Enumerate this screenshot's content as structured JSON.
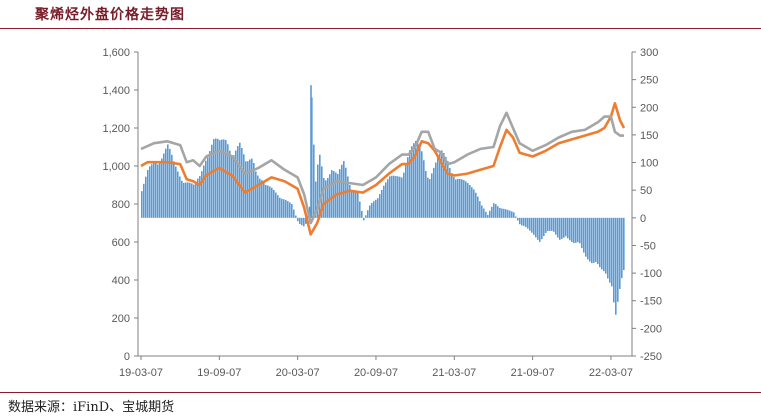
{
  "header": {
    "title": "聚烯烃外盘价格走势图"
  },
  "footer": {
    "source": "数据来源：iFinD、宝城期货"
  },
  "colors": {
    "bars": "#5b9bd5",
    "line_orange": "#ed7d31",
    "line_gray": "#a5a5a5",
    "rule": "#8b1a2b"
  },
  "chart_data": {
    "type": "bar+line",
    "title": "",
    "x_tick_labels": [
      "19-03-07",
      "19-09-07",
      "20-03-07",
      "20-09-07",
      "21-03-07",
      "21-09-07",
      "22-03-07"
    ],
    "left_axis": {
      "ticks": [
        "0",
        "200",
        "400",
        "600",
        "800",
        "1,000",
        "1,200",
        "1,400",
        "1,600"
      ],
      "ylim": [
        0,
        1600
      ]
    },
    "right_axis": {
      "ticks": [
        "-250",
        "-200",
        "-150",
        "-100",
        "-50",
        "0",
        "50",
        "100",
        "150",
        "200",
        "250",
        "300"
      ],
      "ylim": [
        -250,
        300
      ]
    },
    "x_range_months": [
      0,
      37
    ],
    "series": [
      {
        "kind": "bar",
        "axis": "right",
        "x": [
          0,
          0.5,
          1,
          1.5,
          2,
          2.5,
          3,
          3.5,
          4,
          4.5,
          5,
          5.5,
          6,
          6.5,
          7,
          7.5,
          8,
          8.5,
          9,
          9.5,
          10,
          10.5,
          11,
          11.5,
          12,
          12.5,
          12.9,
          13,
          13.3,
          13.6,
          14,
          14.5,
          15,
          15.5,
          16,
          16.5,
          17,
          17.5,
          18,
          18.5,
          19,
          19.5,
          20,
          20.5,
          21,
          21.5,
          22,
          22.5,
          23,
          23.5,
          24,
          24.5,
          25,
          25.5,
          26,
          26.5,
          27,
          27.5,
          28,
          28.5,
          29,
          29.5,
          30,
          30.5,
          31,
          31.5,
          32,
          32.5,
          33,
          33.5,
          34,
          34.5,
          35,
          35.5,
          36,
          36.3,
          36.6,
          37
        ],
        "values": [
          50,
          90,
          110,
          120,
          135,
          100,
          80,
          70,
          60,
          80,
          130,
          150,
          140,
          150,
          130,
          140,
          100,
          120,
          80,
          60,
          55,
          45,
          35,
          25,
          -10,
          -20,
          25,
          240,
          60,
          120,
          70,
          100,
          80,
          105,
          60,
          55,
          -5,
          25,
          40,
          60,
          75,
          80,
          90,
          125,
          140,
          130,
          75,
          100,
          125,
          115,
          75,
          70,
          65,
          60,
          25,
          5,
          30,
          20,
          15,
          10,
          -15,
          -20,
          -30,
          -45,
          -30,
          -25,
          -40,
          -35,
          -55,
          -45,
          -70,
          -90,
          -100,
          -100,
          -125,
          -190,
          -155,
          -95
        ]
      },
      {
        "kind": "line",
        "axis": "left",
        "color": "orange",
        "x": [
          0,
          0.5,
          1,
          2,
          3,
          3.5,
          4,
          4.5,
          5,
          6,
          7,
          8,
          9,
          10,
          11,
          12,
          12.5,
          13,
          13.5,
          14,
          15,
          16,
          17,
          18,
          19,
          20,
          20.5,
          21,
          21.5,
          22,
          22.5,
          23,
          23.5,
          24,
          25,
          26,
          27,
          27.5,
          28,
          28.5,
          29,
          29.5,
          30,
          31,
          32,
          33,
          34,
          35,
          35.5,
          36,
          36.3,
          36.7,
          37
        ],
        "values": [
          1000,
          1020,
          1020,
          1020,
          1010,
          930,
          920,
          900,
          950,
          990,
          950,
          860,
          900,
          940,
          920,
          880,
          780,
          640,
          700,
          800,
          850,
          870,
          860,
          900,
          960,
          1010,
          1010,
          1050,
          1130,
          1120,
          1080,
          1020,
          960,
          950,
          960,
          980,
          1000,
          1100,
          1190,
          1150,
          1070,
          1060,
          1050,
          1080,
          1120,
          1140,
          1160,
          1180,
          1200,
          1260,
          1330,
          1240,
          1200
        ]
      },
      {
        "kind": "line",
        "axis": "left",
        "color": "gray",
        "x": [
          0,
          1,
          2,
          3,
          3.5,
          4,
          4.5,
          5,
          6,
          7,
          8,
          9,
          10,
          11,
          12,
          12.5,
          13,
          13.5,
          14,
          15,
          16,
          17,
          18,
          19,
          20,
          20.5,
          21,
          21.5,
          22,
          22.5,
          23,
          23.5,
          24,
          25,
          26,
          27,
          27.5,
          28,
          28.5,
          29,
          29.5,
          30,
          31,
          32,
          33,
          34,
          35,
          35.5,
          36,
          36.3,
          36.7,
          37
        ],
        "values": [
          1090,
          1120,
          1130,
          1110,
          1020,
          1030,
          1000,
          1050,
          1080,
          1050,
          960,
          990,
          1030,
          980,
          940,
          850,
          700,
          770,
          880,
          920,
          910,
          900,
          940,
          1010,
          1060,
          1060,
          1100,
          1180,
          1180,
          1090,
          1070,
          1010,
          1020,
          1060,
          1090,
          1100,
          1210,
          1280,
          1200,
          1120,
          1100,
          1080,
          1110,
          1150,
          1180,
          1190,
          1230,
          1260,
          1260,
          1180,
          1160,
          1160
        ]
      }
    ]
  }
}
